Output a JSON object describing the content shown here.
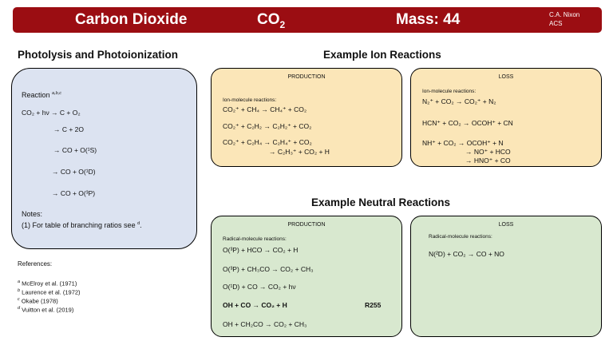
{
  "header": {
    "name": "Carbon Dioxide",
    "formula_main": "CO",
    "formula_sub": "2",
    "mass": "Mass: 44",
    "author_line1": "C.A. Nixon",
    "author_line2": "ACS"
  },
  "photolysis": {
    "heading": "Photolysis and Photoionization",
    "reaction_label": "Reaction ",
    "reaction_refs": "a,b,c",
    "lines": [
      "CO₂ + hν → C + O₂",
      "→ C + 2O",
      "→ CO + O(¹S)",
      "→ CO + O(¹D)",
      "→ CO + O(³P)"
    ],
    "notes_label": "Notes:",
    "note_text": "(1) For table of branching ratios see ",
    "note_ref": "d",
    "note_end": "."
  },
  "ion": {
    "heading": "Example Ion Reactions",
    "production": {
      "title": "PRODUCTION",
      "subtitle": "Ion-molecule reactions:",
      "reactions": [
        "CO₂⁺ + CH₄   → CH₄⁺ + CO₂",
        "CO₂⁺ + C₂H₂ → C₂H₂⁺ + CO₂",
        "CO₂⁺ + C₂H₄ → C₂H₄⁺ + CO₂",
        "→ C₂H₃⁺ + CO₂ + H"
      ]
    },
    "loss": {
      "title": "LOSS",
      "subtitle": "Ion-molecule reactions:",
      "reactions": [
        "N₂⁺ + CO₂    → CO₂⁺ + N₂",
        "HCN⁺ + CO₂ → OCOH⁺ + CN",
        "NH⁺ + CO₂    → OCOH⁺ + N",
        "→ NO⁺ + HCO",
        "→ HNO⁺ + CO"
      ]
    }
  },
  "neutral": {
    "heading": "Example Neutral Reactions",
    "production": {
      "title": "PRODUCTION",
      "subtitle": "Radical-molecule reactions:",
      "reactions": [
        "O(³P) + HCO      → CO₂ + H",
        "O(³P) + CH₃CO → CO₂ + CH₃",
        "O(¹D) + CO        → CO₂ + hν",
        "OH + CO            → CO₂ + H",
        "OH + CH₂CO      → CO₂ + CH₃"
      ],
      "bold_tag": "R255"
    },
    "loss": {
      "title": "LOSS",
      "subtitle": "Radical-molecule reactions:",
      "reactions": [
        "N(²D) +  CO₂ → CO + NO"
      ]
    }
  },
  "references": {
    "label": "References:",
    "items": [
      {
        "mark": "a",
        "text": " McElroy et al. (1971)"
      },
      {
        "mark": "b",
        "text": " Laurence et al. (1972)"
      },
      {
        "mark": "c",
        "text": " Okabe (1978)"
      },
      {
        "mark": "d",
        "text": " Vuitton et al. (2019)"
      }
    ]
  },
  "colors": {
    "title_bar": "#9b0d12",
    "photolysis_panel": "#dce3f1",
    "ion_panels": "#fbe6b8",
    "neutral_panels": "#d8e8cf"
  }
}
